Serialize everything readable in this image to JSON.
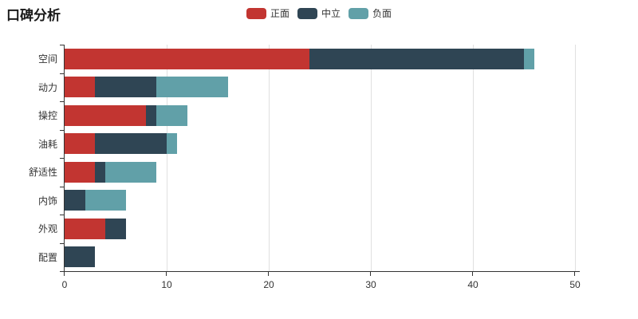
{
  "chart_data": {
    "type": "bar",
    "orientation": "horizontal",
    "stacked": true,
    "title": "口碑分析",
    "categories": [
      "空间",
      "动力",
      "操控",
      "油耗",
      "舒适性",
      "内饰",
      "外观",
      "配置"
    ],
    "series": [
      {
        "name": "正面",
        "color": "#c23531",
        "values": [
          24,
          3,
          8,
          3,
          3,
          0,
          4,
          0
        ]
      },
      {
        "name": "中立",
        "color": "#2f4554",
        "values": [
          21,
          6,
          1,
          7,
          1,
          2,
          2,
          3
        ]
      },
      {
        "name": "负面",
        "color": "#61a0a8",
        "values": [
          1,
          7,
          3,
          1,
          5,
          4,
          0,
          0
        ]
      }
    ],
    "totals": [
      46,
      16,
      12,
      11,
      9,
      6,
      6,
      3
    ],
    "xlim": [
      0,
      50
    ],
    "x_ticks": [
      0,
      10,
      20,
      30,
      40,
      50
    ],
    "grid": true,
    "legend_position": "top-center",
    "xlabel": "",
    "ylabel": ""
  },
  "legend": {
    "items": [
      {
        "label": "正面",
        "color": "#c23531"
      },
      {
        "label": "中立",
        "color": "#2f4554"
      },
      {
        "label": "负面",
        "color": "#61a0a8"
      }
    ]
  },
  "colors": {
    "positive": "#c23531",
    "neutral": "#2f4554",
    "negative": "#61a0a8",
    "axis": "#333333",
    "gridline": "#e0e0e0",
    "title_text": "#1a1a1a",
    "label_text": "#333333",
    "background": "#ffffff"
  }
}
